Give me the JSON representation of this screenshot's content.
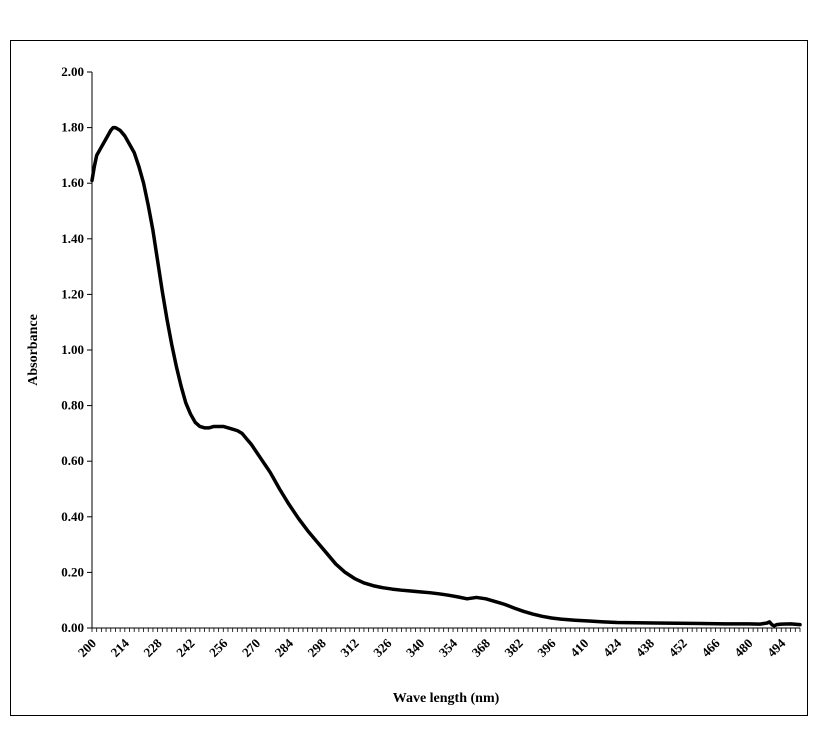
{
  "chart_data": {
    "type": "line",
    "title": "",
    "xlabel": "Wave length (nm)",
    "ylabel": "Absorbance",
    "xlim": [
      200,
      502
    ],
    "ylim": [
      0,
      2
    ],
    "x_ticks": [
      200,
      214,
      228,
      242,
      256,
      270,
      284,
      298,
      312,
      326,
      340,
      354,
      368,
      382,
      396,
      410,
      424,
      438,
      452,
      466,
      480,
      494
    ],
    "y_ticks": [
      "0.00",
      "0.20",
      "0.40",
      "0.60",
      "0.80",
      "1.00",
      "1.20",
      "1.40",
      "1.60",
      "1.80",
      "2.00"
    ],
    "grid": false,
    "legend": "none",
    "line_color": "#000000",
    "series": [
      {
        "x": [
          200,
          201,
          202,
          204,
          206,
          208,
          209,
          210,
          212,
          214,
          216,
          218,
          220,
          222,
          224,
          226,
          228,
          230,
          232,
          234,
          236,
          238,
          240,
          242,
          244,
          246,
          248,
          250,
          252,
          254,
          256,
          258,
          260,
          262,
          264,
          266,
          268,
          270,
          272,
          274,
          276,
          278,
          280,
          284,
          288,
          292,
          296,
          300,
          304,
          308,
          312,
          316,
          320,
          324,
          328,
          332,
          336,
          340,
          344,
          348,
          352,
          356,
          360,
          364,
          368,
          370,
          372,
          374,
          376,
          380,
          384,
          388,
          392,
          396,
          400,
          406,
          412,
          418,
          424,
          432,
          440,
          450,
          460,
          470,
          480,
          485,
          488,
          489,
          490,
          491,
          492,
          494,
          498,
          502
        ],
        "y": [
          1.61,
          1.66,
          1.7,
          1.73,
          1.76,
          1.79,
          1.8,
          1.8,
          1.79,
          1.77,
          1.74,
          1.71,
          1.66,
          1.6,
          1.52,
          1.43,
          1.32,
          1.21,
          1.11,
          1.02,
          0.94,
          0.87,
          0.81,
          0.77,
          0.74,
          0.725,
          0.72,
          0.72,
          0.725,
          0.725,
          0.725,
          0.72,
          0.715,
          0.71,
          0.7,
          0.68,
          0.66,
          0.635,
          0.61,
          0.585,
          0.56,
          0.53,
          0.5,
          0.445,
          0.395,
          0.35,
          0.31,
          0.27,
          0.23,
          0.2,
          0.178,
          0.162,
          0.152,
          0.145,
          0.14,
          0.136,
          0.133,
          0.13,
          0.127,
          0.123,
          0.118,
          0.112,
          0.105,
          0.11,
          0.105,
          0.1,
          0.095,
          0.09,
          0.085,
          0.072,
          0.06,
          0.05,
          0.042,
          0.036,
          0.032,
          0.028,
          0.025,
          0.022,
          0.02,
          0.019,
          0.018,
          0.017,
          0.016,
          0.015,
          0.015,
          0.014,
          0.018,
          0.022,
          0.012,
          0.008,
          0.012,
          0.014,
          0.015,
          0.012
        ]
      }
    ]
  }
}
